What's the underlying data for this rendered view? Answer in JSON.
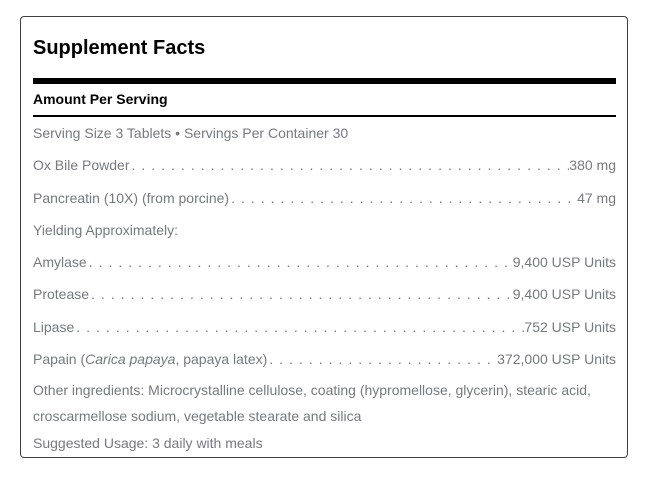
{
  "panel": {
    "title": "Supplement Facts",
    "heading": "Amount Per Serving",
    "rows": [
      {
        "parts": [
          {
            "text": "Serving Size 3 Tablets • Servings Per Container 30"
          }
        ],
        "value": ""
      },
      {
        "parts": [
          {
            "text": "Ox Bile Powder"
          }
        ],
        "value": "380 mg"
      },
      {
        "parts": [
          {
            "text": "Pancreatin (10X) (from porcine)"
          }
        ],
        "value": "47 mg"
      },
      {
        "parts": [
          {
            "text": "Yielding Approximately:"
          }
        ],
        "value": ""
      },
      {
        "parts": [
          {
            "text": "Amylase"
          }
        ],
        "value": "9,400 USP Units"
      },
      {
        "parts": [
          {
            "text": "Protease"
          }
        ],
        "value": "9,400 USP Units"
      },
      {
        "parts": [
          {
            "text": "Lipase"
          }
        ],
        "value": "752 USP Units"
      },
      {
        "parts": [
          {
            "text": "Papain ("
          },
          {
            "text": "Carica papaya",
            "italic": true
          },
          {
            "text": ", papaya latex)"
          }
        ],
        "value": "372,000 USP Units"
      }
    ],
    "other_ingredients": "Other ingredients: Microcrystalline cellulose, coating (hypromellose, glycerin), stearic acid, croscarmellose sodium, vegetable stearate and silica",
    "suggested_usage": "Suggested Usage: 3 daily with meals",
    "colors": {
      "text_gray": "#76797e",
      "heading_black": "#000000",
      "divider_black": "#000000",
      "card_border": "#3f3f3f",
      "background": "#ffffff"
    }
  }
}
